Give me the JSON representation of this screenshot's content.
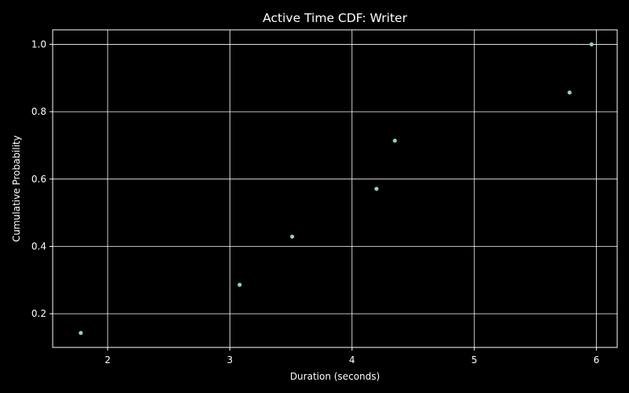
{
  "chart_data": {
    "type": "scatter",
    "title": "Active Time CDF: Writer",
    "xlabel": "Duration (seconds)",
    "ylabel": "Cumulative Probability",
    "xlim": [
      1.55,
      6.17
    ],
    "ylim": [
      0.1,
      1.043
    ],
    "xticks": [
      2,
      3,
      4,
      5,
      6
    ],
    "yticks": [
      0.2,
      0.4,
      0.6,
      0.8,
      1.0
    ],
    "xtick_labels": [
      "2",
      "3",
      "4",
      "5",
      "6"
    ],
    "ytick_labels": [
      "0.2",
      "0.4",
      "0.6",
      "0.8",
      "1.0"
    ],
    "grid": true,
    "series": [
      {
        "color": "#8dd3c7",
        "points": [
          {
            "x": 1.78,
            "y": 0.143
          },
          {
            "x": 3.08,
            "y": 0.286
          },
          {
            "x": 3.51,
            "y": 0.429
          },
          {
            "x": 4.2,
            "y": 0.571
          },
          {
            "x": 4.35,
            "y": 0.714
          },
          {
            "x": 5.78,
            "y": 0.857
          },
          {
            "x": 5.96,
            "y": 1.0
          }
        ]
      }
    ],
    "colors": {
      "background": "#000000",
      "grid": "#ffffff",
      "axes": "#ffffff",
      "text": "#ffffff"
    }
  }
}
